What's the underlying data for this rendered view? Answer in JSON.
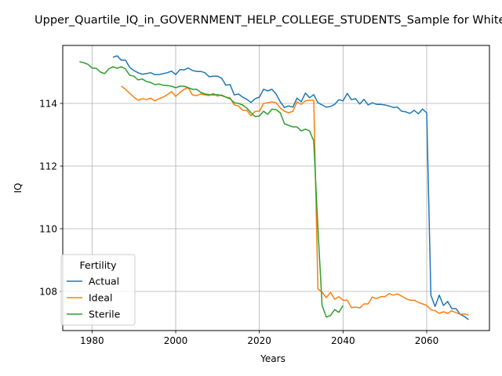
{
  "chart_data": {
    "type": "line",
    "title": "Upper_Quartile_IQ_in_GOVERNMENT_HELP_COLLEGE_STUDENTS_Sample for Whites",
    "xlabel": "Years",
    "ylabel": "IQ",
    "xlim": [
      1973,
      2075
    ],
    "ylim": [
      106.75,
      115.85
    ],
    "xticks": [
      1980,
      2000,
      2020,
      2040,
      2060
    ],
    "yticks": [
      108,
      110,
      112,
      114
    ],
    "grid": true,
    "legend": {
      "title": "Fertility",
      "placement": "lower-left"
    },
    "series": [
      {
        "name": "Actual",
        "color": "#1f77b4",
        "x": [
          1985,
          1986,
          1987,
          1988,
          1989,
          1990,
          1991,
          1992,
          1993,
          1994,
          1995,
          1996,
          1997,
          1998,
          1999,
          2000,
          2001,
          2002,
          2003,
          2004,
          2005,
          2006,
          2007,
          2008,
          2009,
          2010,
          2011,
          2012,
          2013,
          2014,
          2015,
          2016,
          2017,
          2018,
          2019,
          2020,
          2021,
          2022,
          2023,
          2024,
          2025,
          2026,
          2027,
          2028,
          2029,
          2030,
          2031,
          2032,
          2033,
          2034,
          2035,
          2036,
          2037,
          2038,
          2039,
          2040,
          2041,
          2042,
          2043,
          2044,
          2045,
          2046,
          2047,
          2048,
          2049,
          2050,
          2051,
          2052,
          2053,
          2054,
          2055,
          2056,
          2057,
          2058,
          2059,
          2060,
          2061,
          2062,
          2063,
          2064,
          2065,
          2066,
          2067,
          2068,
          2069,
          2070
        ],
        "values": [
          115.47,
          115.52,
          115.38,
          115.38,
          115.15,
          115.05,
          114.98,
          114.93,
          114.95,
          114.98,
          114.92,
          114.92,
          114.95,
          114.98,
          115.03,
          114.92,
          115.08,
          115.07,
          115.13,
          115.05,
          115.02,
          115.02,
          114.98,
          114.85,
          114.87,
          114.87,
          114.8,
          114.58,
          114.6,
          114.27,
          114.3,
          114.2,
          114.13,
          114.03,
          114.15,
          114.2,
          114.45,
          114.4,
          114.45,
          114.3,
          114.05,
          113.87,
          113.92,
          113.88,
          114.17,
          114.05,
          114.33,
          114.18,
          114.28,
          114.02,
          113.95,
          113.88,
          113.9,
          113.97,
          114.12,
          114.08,
          114.32,
          114.12,
          114.15,
          113.98,
          114.13,
          113.95,
          114.02,
          113.97,
          113.97,
          113.95,
          113.92,
          113.87,
          113.88,
          113.75,
          113.73,
          113.68,
          113.78,
          113.67,
          113.82,
          113.7,
          107.88,
          107.52,
          107.88,
          107.55,
          107.68,
          107.45,
          107.45,
          107.27,
          107.2,
          107.1
        ]
      },
      {
        "name": "Ideal",
        "color": "#ff7f0e",
        "x": [
          1987,
          1988,
          1989,
          1990,
          1991,
          1992,
          1993,
          1994,
          1995,
          1996,
          1997,
          1998,
          1999,
          2000,
          2001,
          2002,
          2003,
          2004,
          2005,
          2006,
          2007,
          2008,
          2009,
          2010,
          2011,
          2012,
          2013,
          2014,
          2015,
          2016,
          2017,
          2018,
          2019,
          2020,
          2021,
          2022,
          2023,
          2024,
          2025,
          2026,
          2027,
          2028,
          2029,
          2030,
          2031,
          2032,
          2033,
          2034,
          2035,
          2036,
          2037,
          2038,
          2039,
          2040,
          2041,
          2042,
          2043,
          2044,
          2045,
          2046,
          2047,
          2048,
          2049,
          2050,
          2051,
          2052,
          2053,
          2054,
          2055,
          2056,
          2057,
          2058,
          2059,
          2060,
          2061,
          2062,
          2063,
          2064,
          2065,
          2066,
          2067,
          2068,
          2069,
          2070
        ],
        "values": [
          114.55,
          114.45,
          114.32,
          114.2,
          114.1,
          114.15,
          114.12,
          114.17,
          114.08,
          114.15,
          114.2,
          114.28,
          114.38,
          114.22,
          114.35,
          114.45,
          114.5,
          114.27,
          114.25,
          114.3,
          114.27,
          114.25,
          114.32,
          114.23,
          114.27,
          114.2,
          114.18,
          113.95,
          113.92,
          113.78,
          113.78,
          113.6,
          113.75,
          113.75,
          114,
          114.02,
          114.05,
          114.02,
          113.85,
          113.75,
          113.7,
          113.75,
          114.05,
          113.97,
          114.08,
          114.1,
          114.1,
          108.08,
          107.97,
          107.8,
          107.97,
          107.75,
          107.83,
          107.72,
          107.72,
          107.48,
          107.5,
          107.47,
          107.6,
          107.6,
          107.82,
          107.77,
          107.83,
          107.83,
          107.93,
          107.88,
          107.92,
          107.85,
          107.77,
          107.72,
          107.72,
          107.65,
          107.6,
          107.55,
          107.42,
          107.38,
          107.3,
          107.35,
          107.3,
          107.38,
          107.32,
          107.27,
          107.28,
          107.25
        ]
      },
      {
        "name": "Sterile",
        "color": "#2ca02c",
        "x": [
          1977,
          1978,
          1979,
          1980,
          1981,
          1982,
          1983,
          1984,
          1985,
          1986,
          1987,
          1988,
          1989,
          1990,
          1991,
          1992,
          1993,
          1994,
          1995,
          1996,
          1997,
          1998,
          1999,
          2000,
          2001,
          2002,
          2003,
          2004,
          2005,
          2006,
          2007,
          2008,
          2009,
          2010,
          2011,
          2012,
          2013,
          2014,
          2015,
          2016,
          2017,
          2018,
          2019,
          2020,
          2021,
          2022,
          2023,
          2024,
          2025,
          2026,
          2027,
          2028,
          2029,
          2030,
          2031,
          2032,
          2033,
          2034,
          2035,
          2036,
          2037,
          2038,
          2039,
          2040
        ],
        "values": [
          115.33,
          115.3,
          115.25,
          115.13,
          115.12,
          115.0,
          114.95,
          115.1,
          115.17,
          115.12,
          115.17,
          115.1,
          114.9,
          114.87,
          114.75,
          114.78,
          114.7,
          114.67,
          114.6,
          114.62,
          114.58,
          114.57,
          114.55,
          114.5,
          114.55,
          114.55,
          114.5,
          114.45,
          114.45,
          114.35,
          114.3,
          114.28,
          114.27,
          114.28,
          114.25,
          114.2,
          114.15,
          114.02,
          114.0,
          113.95,
          113.85,
          113.7,
          113.58,
          113.6,
          113.75,
          113.65,
          113.82,
          113.8,
          113.7,
          113.35,
          113.3,
          113.25,
          113.25,
          113.12,
          113.18,
          113.12,
          112.8,
          110.0,
          107.55,
          107.18,
          107.23,
          107.42,
          107.33,
          107.55
        ]
      }
    ]
  }
}
